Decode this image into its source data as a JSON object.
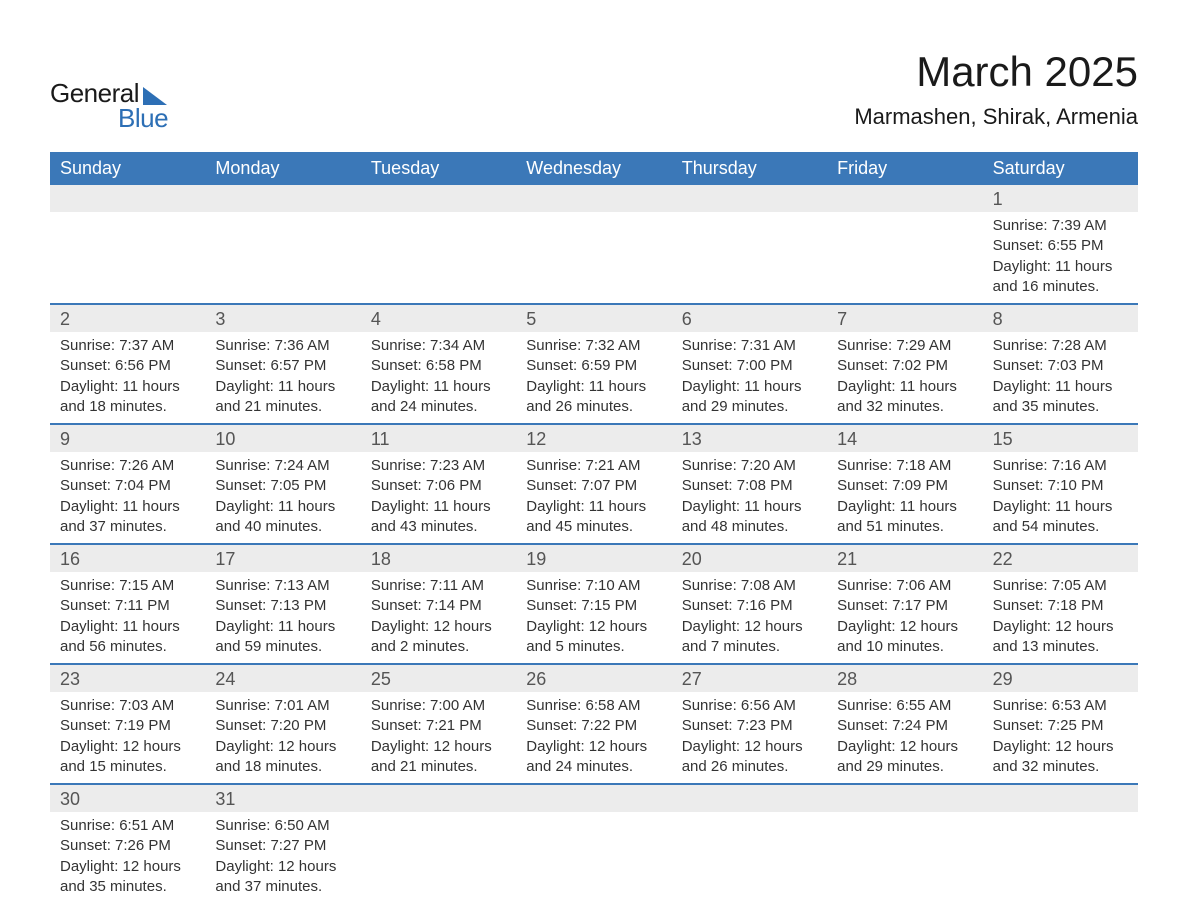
{
  "logo": {
    "top": "General",
    "bottom": "Blue",
    "brand_color": "#2d6fb5"
  },
  "title": "March 2025",
  "location": "Marmashen, Shirak, Armenia",
  "colors": {
    "header_bg": "#3b78b8",
    "header_text": "#ffffff",
    "band_bg": "#ececec",
    "row_divider": "#3b78b8",
    "text": "#333333",
    "page_bg": "#ffffff"
  },
  "typography": {
    "title_fontsize": 42,
    "location_fontsize": 22,
    "dow_fontsize": 18,
    "daynum_fontsize": 18,
    "body_fontsize": 15
  },
  "layout": {
    "columns": 7,
    "rows": 6,
    "first_day_column_index": 6
  },
  "days_of_week": [
    "Sunday",
    "Monday",
    "Tuesday",
    "Wednesday",
    "Thursday",
    "Friday",
    "Saturday"
  ],
  "weeks": [
    [
      null,
      null,
      null,
      null,
      null,
      null,
      {
        "n": "1",
        "sunrise": "Sunrise: 7:39 AM",
        "sunset": "Sunset: 6:55 PM",
        "daylight": "Daylight: 11 hours and 16 minutes."
      }
    ],
    [
      {
        "n": "2",
        "sunrise": "Sunrise: 7:37 AM",
        "sunset": "Sunset: 6:56 PM",
        "daylight": "Daylight: 11 hours and 18 minutes."
      },
      {
        "n": "3",
        "sunrise": "Sunrise: 7:36 AM",
        "sunset": "Sunset: 6:57 PM",
        "daylight": "Daylight: 11 hours and 21 minutes."
      },
      {
        "n": "4",
        "sunrise": "Sunrise: 7:34 AM",
        "sunset": "Sunset: 6:58 PM",
        "daylight": "Daylight: 11 hours and 24 minutes."
      },
      {
        "n": "5",
        "sunrise": "Sunrise: 7:32 AM",
        "sunset": "Sunset: 6:59 PM",
        "daylight": "Daylight: 11 hours and 26 minutes."
      },
      {
        "n": "6",
        "sunrise": "Sunrise: 7:31 AM",
        "sunset": "Sunset: 7:00 PM",
        "daylight": "Daylight: 11 hours and 29 minutes."
      },
      {
        "n": "7",
        "sunrise": "Sunrise: 7:29 AM",
        "sunset": "Sunset: 7:02 PM",
        "daylight": "Daylight: 11 hours and 32 minutes."
      },
      {
        "n": "8",
        "sunrise": "Sunrise: 7:28 AM",
        "sunset": "Sunset: 7:03 PM",
        "daylight": "Daylight: 11 hours and 35 minutes."
      }
    ],
    [
      {
        "n": "9",
        "sunrise": "Sunrise: 7:26 AM",
        "sunset": "Sunset: 7:04 PM",
        "daylight": "Daylight: 11 hours and 37 minutes."
      },
      {
        "n": "10",
        "sunrise": "Sunrise: 7:24 AM",
        "sunset": "Sunset: 7:05 PM",
        "daylight": "Daylight: 11 hours and 40 minutes."
      },
      {
        "n": "11",
        "sunrise": "Sunrise: 7:23 AM",
        "sunset": "Sunset: 7:06 PM",
        "daylight": "Daylight: 11 hours and 43 minutes."
      },
      {
        "n": "12",
        "sunrise": "Sunrise: 7:21 AM",
        "sunset": "Sunset: 7:07 PM",
        "daylight": "Daylight: 11 hours and 45 minutes."
      },
      {
        "n": "13",
        "sunrise": "Sunrise: 7:20 AM",
        "sunset": "Sunset: 7:08 PM",
        "daylight": "Daylight: 11 hours and 48 minutes."
      },
      {
        "n": "14",
        "sunrise": "Sunrise: 7:18 AM",
        "sunset": "Sunset: 7:09 PM",
        "daylight": "Daylight: 11 hours and 51 minutes."
      },
      {
        "n": "15",
        "sunrise": "Sunrise: 7:16 AM",
        "sunset": "Sunset: 7:10 PM",
        "daylight": "Daylight: 11 hours and 54 minutes."
      }
    ],
    [
      {
        "n": "16",
        "sunrise": "Sunrise: 7:15 AM",
        "sunset": "Sunset: 7:11 PM",
        "daylight": "Daylight: 11 hours and 56 minutes."
      },
      {
        "n": "17",
        "sunrise": "Sunrise: 7:13 AM",
        "sunset": "Sunset: 7:13 PM",
        "daylight": "Daylight: 11 hours and 59 minutes."
      },
      {
        "n": "18",
        "sunrise": "Sunrise: 7:11 AM",
        "sunset": "Sunset: 7:14 PM",
        "daylight": "Daylight: 12 hours and 2 minutes."
      },
      {
        "n": "19",
        "sunrise": "Sunrise: 7:10 AM",
        "sunset": "Sunset: 7:15 PM",
        "daylight": "Daylight: 12 hours and 5 minutes."
      },
      {
        "n": "20",
        "sunrise": "Sunrise: 7:08 AM",
        "sunset": "Sunset: 7:16 PM",
        "daylight": "Daylight: 12 hours and 7 minutes."
      },
      {
        "n": "21",
        "sunrise": "Sunrise: 7:06 AM",
        "sunset": "Sunset: 7:17 PM",
        "daylight": "Daylight: 12 hours and 10 minutes."
      },
      {
        "n": "22",
        "sunrise": "Sunrise: 7:05 AM",
        "sunset": "Sunset: 7:18 PM",
        "daylight": "Daylight: 12 hours and 13 minutes."
      }
    ],
    [
      {
        "n": "23",
        "sunrise": "Sunrise: 7:03 AM",
        "sunset": "Sunset: 7:19 PM",
        "daylight": "Daylight: 12 hours and 15 minutes."
      },
      {
        "n": "24",
        "sunrise": "Sunrise: 7:01 AM",
        "sunset": "Sunset: 7:20 PM",
        "daylight": "Daylight: 12 hours and 18 minutes."
      },
      {
        "n": "25",
        "sunrise": "Sunrise: 7:00 AM",
        "sunset": "Sunset: 7:21 PM",
        "daylight": "Daylight: 12 hours and 21 minutes."
      },
      {
        "n": "26",
        "sunrise": "Sunrise: 6:58 AM",
        "sunset": "Sunset: 7:22 PM",
        "daylight": "Daylight: 12 hours and 24 minutes."
      },
      {
        "n": "27",
        "sunrise": "Sunrise: 6:56 AM",
        "sunset": "Sunset: 7:23 PM",
        "daylight": "Daylight: 12 hours and 26 minutes."
      },
      {
        "n": "28",
        "sunrise": "Sunrise: 6:55 AM",
        "sunset": "Sunset: 7:24 PM",
        "daylight": "Daylight: 12 hours and 29 minutes."
      },
      {
        "n": "29",
        "sunrise": "Sunrise: 6:53 AM",
        "sunset": "Sunset: 7:25 PM",
        "daylight": "Daylight: 12 hours and 32 minutes."
      }
    ],
    [
      {
        "n": "30",
        "sunrise": "Sunrise: 6:51 AM",
        "sunset": "Sunset: 7:26 PM",
        "daylight": "Daylight: 12 hours and 35 minutes."
      },
      {
        "n": "31",
        "sunrise": "Sunrise: 6:50 AM",
        "sunset": "Sunset: 7:27 PM",
        "daylight": "Daylight: 12 hours and 37 minutes."
      },
      null,
      null,
      null,
      null,
      null
    ]
  ]
}
